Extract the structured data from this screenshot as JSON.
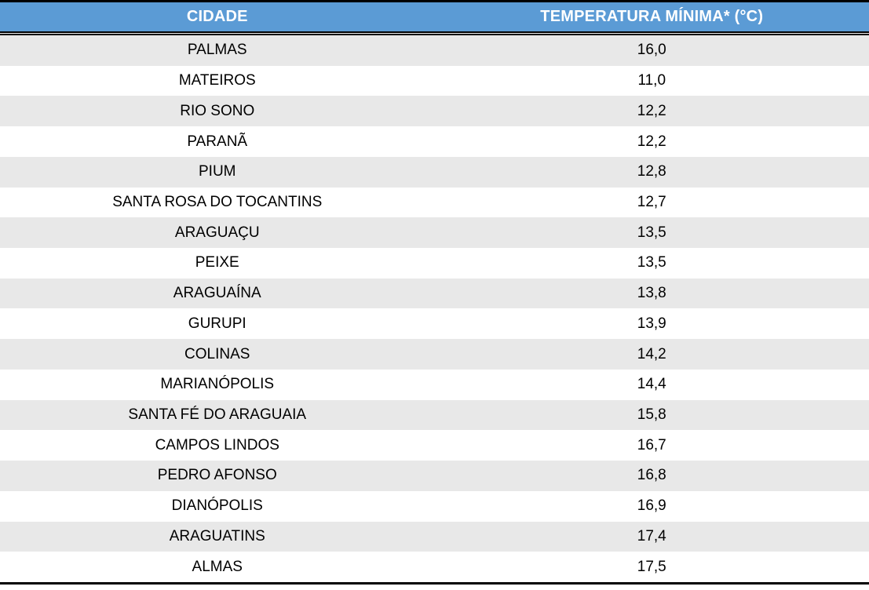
{
  "colors": {
    "header_bg": "#5B9BD5",
    "header_text": "#FFFFFF",
    "row_bg": "#FFFFFF",
    "row_alt_bg": "#E8E8E8",
    "row_text": "#000000",
    "border": "#000000"
  },
  "table": {
    "header": {
      "city": "CIDADE",
      "temperature": "TEMPERATURA MÍNIMA* (°C)"
    },
    "rows": [
      {
        "city": "PALMAS",
        "temp": "16,0"
      },
      {
        "city": "MATEIROS",
        "temp": "11,0"
      },
      {
        "city": "RIO SONO",
        "temp": "12,2"
      },
      {
        "city": "PARANÃ",
        "temp": "12,2"
      },
      {
        "city": "PIUM",
        "temp": "12,8"
      },
      {
        "city": "SANTA ROSA DO TOCANTINS",
        "temp": "12,7"
      },
      {
        "city": "ARAGUAÇU",
        "temp": "13,5"
      },
      {
        "city": "PEIXE",
        "temp": "13,5"
      },
      {
        "city": "ARAGUAÍNA",
        "temp": "13,8"
      },
      {
        "city": "GURUPI",
        "temp": "13,9"
      },
      {
        "city": "COLINAS",
        "temp": "14,2"
      },
      {
        "city": "MARIANÓPOLIS",
        "temp": "14,4"
      },
      {
        "city": "SANTA FÉ DO ARAGUAIA",
        "temp": "15,8"
      },
      {
        "city": "CAMPOS LINDOS",
        "temp": "16,7"
      },
      {
        "city": "PEDRO AFONSO",
        "temp": "16,8"
      },
      {
        "city": "DIANÓPOLIS",
        "temp": "16,9"
      },
      {
        "city": "ARAGUATINS",
        "temp": "17,4"
      },
      {
        "city": "ALMAS",
        "temp": "17,5"
      }
    ]
  },
  "chart_data": {
    "type": "table",
    "title": "",
    "columns": [
      "CIDADE",
      "TEMPERATURA MÍNIMA* (°C)"
    ],
    "rows": [
      [
        "PALMAS",
        16.0
      ],
      [
        "MATEIROS",
        11.0
      ],
      [
        "RIO SONO",
        12.2
      ],
      [
        "PARANÃ",
        12.2
      ],
      [
        "PIUM",
        12.8
      ],
      [
        "SANTA ROSA DO TOCANTINS",
        12.7
      ],
      [
        "ARAGUAÇU",
        13.5
      ],
      [
        "PEIXE",
        13.5
      ],
      [
        "ARAGUAÍNA",
        13.8
      ],
      [
        "GURUPI",
        13.9
      ],
      [
        "COLINAS",
        14.2
      ],
      [
        "MARIANÓPOLIS",
        14.4
      ],
      [
        "SANTA FÉ DO ARAGUAIA",
        15.8
      ],
      [
        "CAMPOS LINDOS",
        16.7
      ],
      [
        "PEDRO AFONSO",
        16.8
      ],
      [
        "DIANÓPOLIS",
        16.9
      ],
      [
        "ARAGUATINS",
        17.4
      ],
      [
        "ALMAS",
        17.5
      ]
    ],
    "layout": {
      "header_style": "blue band, white bold centered text",
      "banding": "alternating gray/white rows starting gray",
      "rules": "black rule at top, double black rule under header, black rule at bottom"
    }
  }
}
